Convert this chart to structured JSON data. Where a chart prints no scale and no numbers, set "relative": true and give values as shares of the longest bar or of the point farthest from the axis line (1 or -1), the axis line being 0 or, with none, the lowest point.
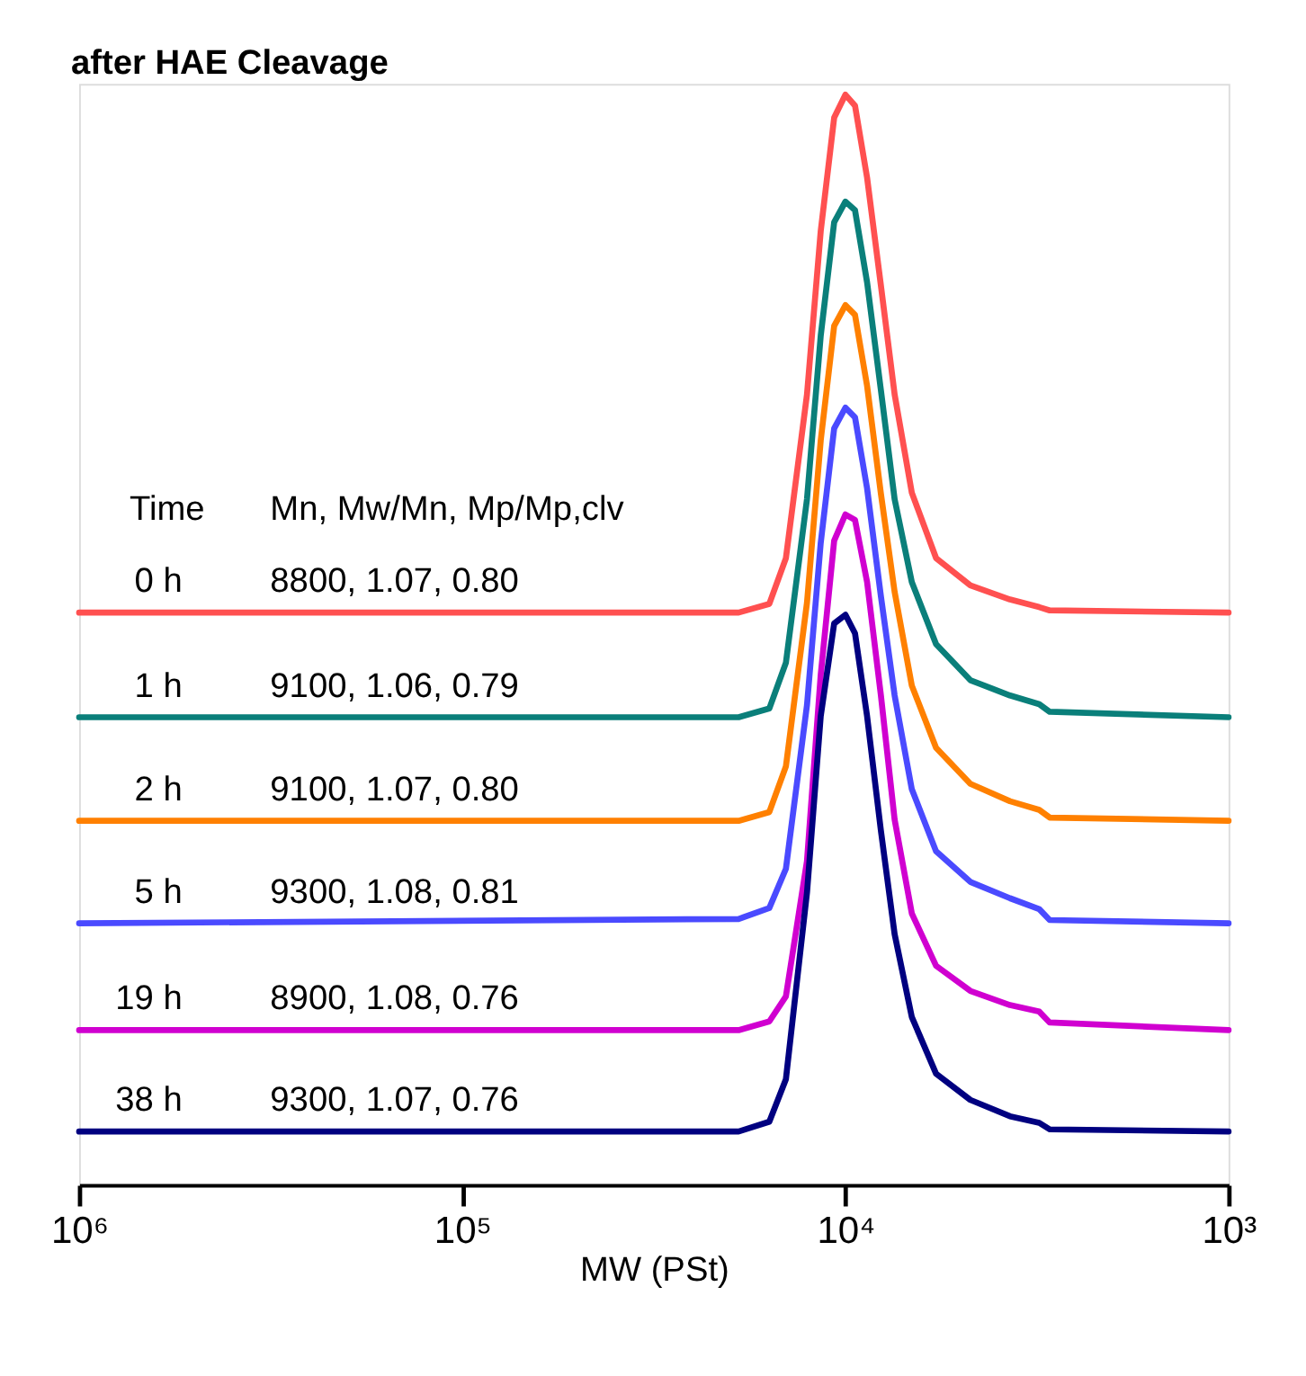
{
  "chart_data": {
    "type": "line",
    "title": "after HAE Cleavage",
    "xlabel": "MW (PSt)",
    "legend_title": "Time",
    "relative": true,
    "log": "x",
    "grid": false,
    "legend": false,
    "marker": "none",
    "line_style": "solid",
    "x": [
      1000000,
      19000,
      15800,
      14300,
      12600,
      11600,
      10700,
      10000,
      9440,
      8780,
      8080,
      7440,
      6710,
      5800,
      4720,
      3720,
      3120,
      2930,
      1000
    ],
    "xlim": [
      1000000,
      1000
    ],
    "xticks": [
      {
        "value": 1000000,
        "label": "10⁶"
      },
      {
        "value": 100000,
        "label": "10⁵"
      },
      {
        "value": 10000,
        "label": "10⁴"
      },
      {
        "value": 1000,
        "label": "10³"
      }
    ],
    "series": [
      {
        "name": "0 h",
        "color": "#ff5050",
        "values": [
          0.525,
          0.525,
          0.533,
          0.575,
          0.725,
          0.875,
          0.979,
          1.0,
          0.99,
          0.924,
          0.825,
          0.725,
          0.635,
          0.575,
          0.55,
          0.537,
          0.53,
          0.527,
          0.525
        ]
      },
      {
        "name": "1 h",
        "color": "#0a7f7a",
        "values": [
          0.429,
          0.429,
          0.437,
          0.479,
          0.629,
          0.779,
          0.883,
          0.902,
          0.894,
          0.828,
          0.729,
          0.629,
          0.553,
          0.496,
          0.463,
          0.449,
          0.441,
          0.434,
          0.429
        ]
      },
      {
        "name": "2 h",
        "color": "#ff8000",
        "values": [
          0.334,
          0.334,
          0.342,
          0.384,
          0.534,
          0.683,
          0.788,
          0.807,
          0.798,
          0.733,
          0.634,
          0.544,
          0.458,
          0.401,
          0.368,
          0.352,
          0.344,
          0.337,
          0.334
        ]
      },
      {
        "name": "5 h",
        "color": "#4a4aff",
        "values": [
          0.24,
          0.244,
          0.254,
          0.29,
          0.44,
          0.589,
          0.694,
          0.713,
          0.704,
          0.639,
          0.54,
          0.449,
          0.363,
          0.306,
          0.278,
          0.263,
          0.253,
          0.243,
          0.24
        ]
      },
      {
        "name": "19 h",
        "color": "#d000d0",
        "values": [
          0.142,
          0.142,
          0.15,
          0.173,
          0.297,
          0.468,
          0.591,
          0.615,
          0.61,
          0.553,
          0.449,
          0.335,
          0.249,
          0.201,
          0.178,
          0.165,
          0.159,
          0.149,
          0.142
        ]
      },
      {
        "name": "38 h",
        "color": "#000080",
        "values": [
          0.049,
          0.049,
          0.058,
          0.097,
          0.268,
          0.43,
          0.515,
          0.523,
          0.506,
          0.43,
          0.325,
          0.23,
          0.154,
          0.102,
          0.078,
          0.063,
          0.057,
          0.051,
          0.049
        ]
      }
    ],
    "annotations": [
      "Mn, Mw/Mn, Mp/Mp,clv",
      "8800, 1.07, 0.80",
      "9100, 1.06, 0.79",
      "9100, 1.07, 0.80",
      "9300, 1.08, 0.81",
      "8900, 1.08, 0.76",
      "9300, 1.07, 0.76"
    ]
  }
}
